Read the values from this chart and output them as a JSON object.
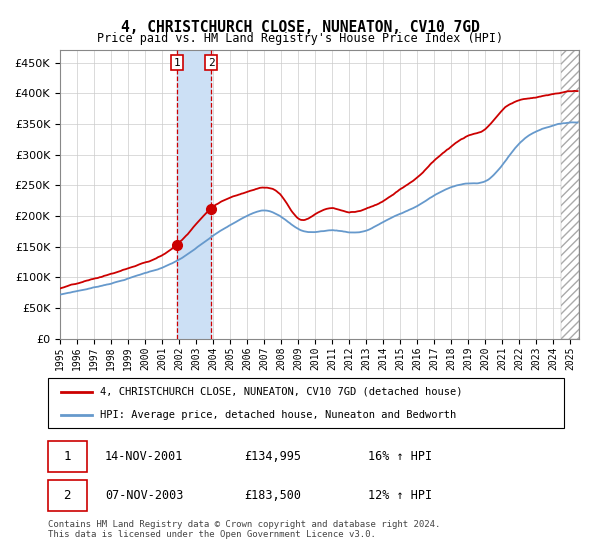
{
  "title": "4, CHRISTCHURCH CLOSE, NUNEATON, CV10 7GD",
  "subtitle": "Price paid vs. HM Land Registry's House Price Index (HPI)",
  "legend_line1": "4, CHRISTCHURCH CLOSE, NUNEATON, CV10 7GD (detached house)",
  "legend_line2": "HPI: Average price, detached house, Nuneaton and Bedworth",
  "transaction1_date": "14-NOV-2001",
  "transaction1_price": 134995,
  "transaction1_pct": "16% ↑ HPI",
  "transaction2_date": "07-NOV-2003",
  "transaction2_price": 183500,
  "transaction2_pct": "12% ↑ HPI",
  "footer": "Contains HM Land Registry data © Crown copyright and database right 2024.\nThis data is licensed under the Open Government Licence v3.0.",
  "red_color": "#cc0000",
  "blue_color": "#6699cc",
  "shade_color": "#cce0f5",
  "ylim_max": 470000,
  "start_year": 1995.0,
  "end_year": 2025.5,
  "hpi_keypoints_x": [
    1995,
    1996,
    1997,
    1998,
    1999,
    2000,
    2001,
    2002,
    2003,
    2004,
    2005,
    2006,
    2007,
    2008,
    2009,
    2010,
    2011,
    2012,
    2013,
    2014,
    2015,
    2016,
    2017,
    2018,
    2019,
    2020,
    2021,
    2022,
    2023,
    2024,
    2025
  ],
  "hpi_keypoints_y": [
    72000,
    78000,
    84000,
    91000,
    99000,
    108000,
    117000,
    130000,
    148000,
    168000,
    185000,
    200000,
    210000,
    200000,
    180000,
    175000,
    178000,
    175000,
    178000,
    192000,
    205000,
    218000,
    235000,
    248000,
    255000,
    258000,
    285000,
    320000,
    340000,
    350000,
    355000
  ],
  "red_keypoints_x": [
    1995,
    1996,
    1997,
    1998,
    1999,
    2000,
    2001,
    2002,
    2003,
    2004,
    2005,
    2006,
    2007,
    2008,
    2009,
    2010,
    2011,
    2012,
    2013,
    2014,
    2015,
    2016,
    2017,
    2018,
    2019,
    2020,
    2021,
    2022,
    2023,
    2024,
    2025
  ],
  "red_keypoints_y": [
    82000,
    89000,
    96000,
    104000,
    113000,
    122000,
    134000,
    155000,
    185000,
    215000,
    230000,
    240000,
    248000,
    235000,
    198000,
    205000,
    215000,
    208000,
    215000,
    228000,
    248000,
    268000,
    295000,
    318000,
    335000,
    345000,
    375000,
    390000,
    395000,
    400000,
    405000
  ]
}
